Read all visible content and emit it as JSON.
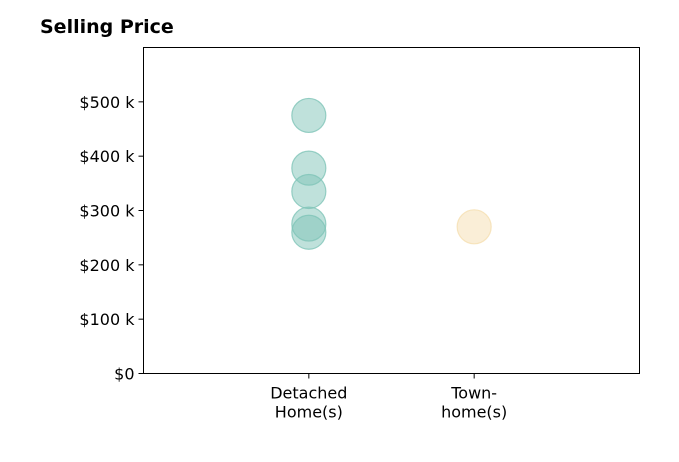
{
  "chart_data": {
    "type": "scatter",
    "title": "Selling Price",
    "xlabel": "",
    "ylabel": "",
    "categories": [
      [
        "Detached",
        "Home(s)"
      ],
      [
        "Town-",
        "home(s)"
      ]
    ],
    "ylim": [
      0,
      600000
    ],
    "yticks": [
      0,
      100000,
      200000,
      300000,
      400000,
      500000
    ],
    "ytick_labels": [
      "$0",
      "$100 k",
      "$200 k",
      "$300 k",
      "$400 k",
      "$500 k"
    ],
    "grid": false,
    "series": [
      {
        "category_index": 0,
        "values": [
          475000,
          378000,
          335000,
          275000,
          260000
        ],
        "color": "#7fc4b8"
      },
      {
        "category_index": 1,
        "values": [
          270000
        ],
        "color": "#f5deb0"
      }
    ]
  }
}
